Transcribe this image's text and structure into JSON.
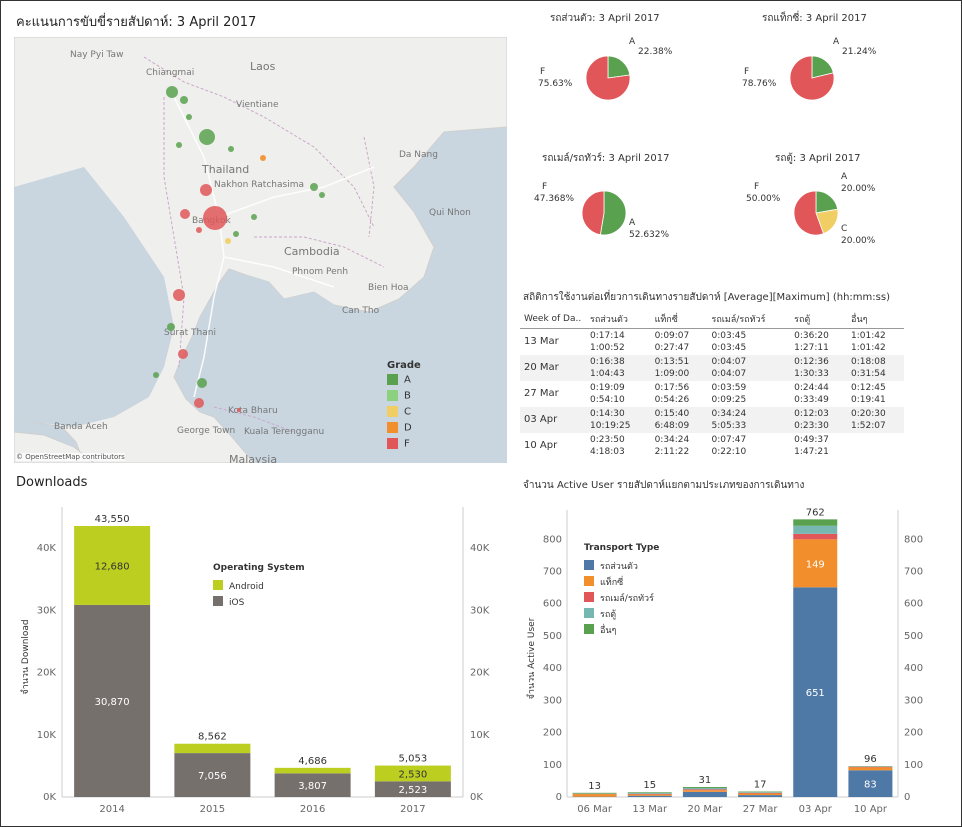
{
  "map_panel": {
    "title": "คะแนนการขับขี่รายสัปดาห์: 3 April 2017",
    "labels": [
      "Nay Pyi Taw",
      "Laos",
      "Chiangmai",
      "Vientiane",
      "Thailand",
      "Nakhon Ratchasima",
      "Da Nang",
      "Bangkok",
      "Qui Nhon",
      "Cambodia",
      "Phnom Penh",
      "Bien Hoa",
      "Surat Thani",
      "Can Tho",
      "Banda Aceh",
      "Kota Bharu",
      "George Town",
      "Kuala Terengganu",
      "Malaysia"
    ],
    "attribution": "© OpenStreetMap contributors",
    "legend_title": "Grade",
    "legend": [
      {
        "label": "A",
        "color": "#59a14f"
      },
      {
        "label": "B",
        "color": "#8cd17d"
      },
      {
        "label": "C",
        "color": "#f1ce63"
      },
      {
        "label": "D",
        "color": "#f28e2b"
      },
      {
        "label": "F",
        "color": "#e15759"
      }
    ]
  },
  "pies": [
    {
      "title": "รถส่วนตัว: 3 April 2017",
      "slices": [
        {
          "label": "A",
          "value": 22.38,
          "text": "22.38%",
          "color": "#59a14f"
        },
        {
          "label": "F",
          "value": 75.63,
          "text": "75.63%",
          "color": "#e15759"
        }
      ]
    },
    {
      "title": "รถแท็กซี่: 3 April 2017",
      "slices": [
        {
          "label": "A",
          "value": 21.24,
          "text": "21.24%",
          "color": "#59a14f"
        },
        {
          "label": "F",
          "value": 78.76,
          "text": "78.76%",
          "color": "#e15759"
        }
      ]
    },
    {
      "title": "รถเมล์/รถทัวร์: 3 April 2017",
      "slices": [
        {
          "label": "A",
          "value": 52.632,
          "text": "52.632%",
          "color": "#59a14f"
        },
        {
          "label": "F",
          "value": 47.368,
          "text": "47.368%",
          "color": "#e15759"
        }
      ]
    },
    {
      "title": "รถตู้: 3 April 2017",
      "slices": [
        {
          "label": "A",
          "value": 20.0,
          "text": "20.00%",
          "color": "#59a14f"
        },
        {
          "label": "C",
          "value": 20.0,
          "text": "20.00%",
          "color": "#f1ce63"
        },
        {
          "label": "F",
          "value": 50.0,
          "text": "50.00%",
          "color": "#e15759"
        }
      ]
    }
  ],
  "stats": {
    "title": "สถิติการใช้งานต่อเที่ยวการเดินทางรายสัปดาห์ [Average][Maximum] (hh:mm:ss)",
    "headers": [
      "Week of Da..",
      "รถส่วนตัว",
      "แท็กซี่",
      "รถเมล์/รถทัวร์",
      "รถตู้",
      "อื่นๆ"
    ],
    "rows": [
      {
        "week": "13 Mar",
        "cells": [
          [
            "0:17:14",
            "1:00:52"
          ],
          [
            "0:09:07",
            "0:27:47"
          ],
          [
            "0:03:45",
            "0:03:45"
          ],
          [
            "0:36:20",
            "1:27:11"
          ],
          [
            "1:01:42",
            "1:01:42"
          ]
        ]
      },
      {
        "week": "20 Mar",
        "cells": [
          [
            "0:16:38",
            "1:04:43"
          ],
          [
            "0:13:51",
            "1:09:00"
          ],
          [
            "0:04:07",
            "0:04:07"
          ],
          [
            "0:12:36",
            "1:30:33"
          ],
          [
            "0:18:08",
            "0:31:54"
          ]
        ]
      },
      {
        "week": "27 Mar",
        "cells": [
          [
            "0:19:09",
            "0:54:10"
          ],
          [
            "0:17:56",
            "0:54:26"
          ],
          [
            "0:03:59",
            "0:09:25"
          ],
          [
            "0:24:44",
            "0:33:49"
          ],
          [
            "0:12:45",
            "0:19:41"
          ]
        ]
      },
      {
        "week": "03 Apr",
        "cells": [
          [
            "0:14:30",
            "10:19:25"
          ],
          [
            "0:15:40",
            "6:48:09"
          ],
          [
            "0:34:24",
            "5:05:33"
          ],
          [
            "0:12:03",
            "0:23:30"
          ],
          [
            "0:20:30",
            "1:52:07"
          ]
        ]
      },
      {
        "week": "10 Apr",
        "cells": [
          [
            "0:23:50",
            "4:18:03"
          ],
          [
            "0:34:24",
            "2:11:22"
          ],
          [
            "0:07:47",
            "0:22:10"
          ],
          [
            "0:49:37",
            "1:47:21"
          ],
          [
            "",
            ""
          ]
        ]
      }
    ]
  },
  "chart_data": [
    {
      "type": "bar",
      "title": "Downloads",
      "xlabel": "",
      "ylabel": "จำนวน Download",
      "ylim": [
        0,
        45000
      ],
      "yticks": [
        "0K",
        "10K",
        "20K",
        "30K",
        "40K"
      ],
      "categories": [
        "2014",
        "2015",
        "2016",
        "2017"
      ],
      "legend_title": "Operating System",
      "series": [
        {
          "name": "iOS",
          "color": "#76706c",
          "values": [
            30870,
            7056,
            3807,
            2523
          ],
          "labels": [
            "30,870",
            "7,056",
            "3,807",
            "2,523"
          ]
        },
        {
          "name": "Android",
          "color": "#bcce1f",
          "values": [
            12680,
            1506,
            879,
            2530
          ],
          "labels": [
            "12,680",
            "",
            "",
            "2,530"
          ]
        }
      ],
      "totals": [
        43550,
        8562,
        4686,
        5053
      ],
      "total_labels": [
        "43,550",
        "8,562",
        "4,686",
        "5,053"
      ]
    },
    {
      "type": "bar",
      "title": "จำนวน Active User รายสัปดาห์แยกตามประเภทของการเดินทาง",
      "xlabel": "",
      "ylabel": "จำนวน Active User",
      "ylim": [
        0,
        860
      ],
      "yticks": [
        "0",
        "100",
        "200",
        "300",
        "400",
        "500",
        "600",
        "700",
        "800"
      ],
      "categories": [
        "06 Mar",
        "13 Mar",
        "20 Mar",
        "27 Mar",
        "03 Apr",
        "10 Apr"
      ],
      "legend_title": "Transport Type",
      "series": [
        {
          "name": "รถส่วนตัว",
          "color": "#4e79a7",
          "values": [
            1,
            4,
            16,
            6,
            651,
            83
          ],
          "labels": [
            "",
            "",
            "",
            "",
            "651",
            "83"
          ]
        },
        {
          "name": "แท็กซี่",
          "color": "#f28e2b",
          "values": [
            8,
            4,
            5,
            5,
            149,
            9
          ],
          "labels": [
            "",
            "",
            "",
            "",
            "149",
            ""
          ]
        },
        {
          "name": "รถเมล์/รถทัวร์",
          "color": "#e15759",
          "values": [
            1,
            2,
            3,
            2,
            17,
            2
          ],
          "labels": [
            "",
            "",
            "",
            "",
            "",
            ""
          ]
        },
        {
          "name": "รถตู้",
          "color": "#76b7b2",
          "values": [
            1,
            3,
            4,
            2,
            25,
            1
          ],
          "labels": [
            "",
            "",
            "",
            "",
            "",
            ""
          ]
        },
        {
          "name": "อื่นๆ",
          "color": "#59a14f",
          "values": [
            2,
            2,
            3,
            2,
            20,
            1
          ],
          "labels": [
            "",
            "",
            "",
            "",
            "",
            ""
          ]
        }
      ],
      "totals": [
        13,
        15,
        31,
        17,
        762,
        96
      ],
      "total_labels": [
        "13",
        "15",
        "31",
        "17",
        "762",
        "96"
      ]
    }
  ]
}
